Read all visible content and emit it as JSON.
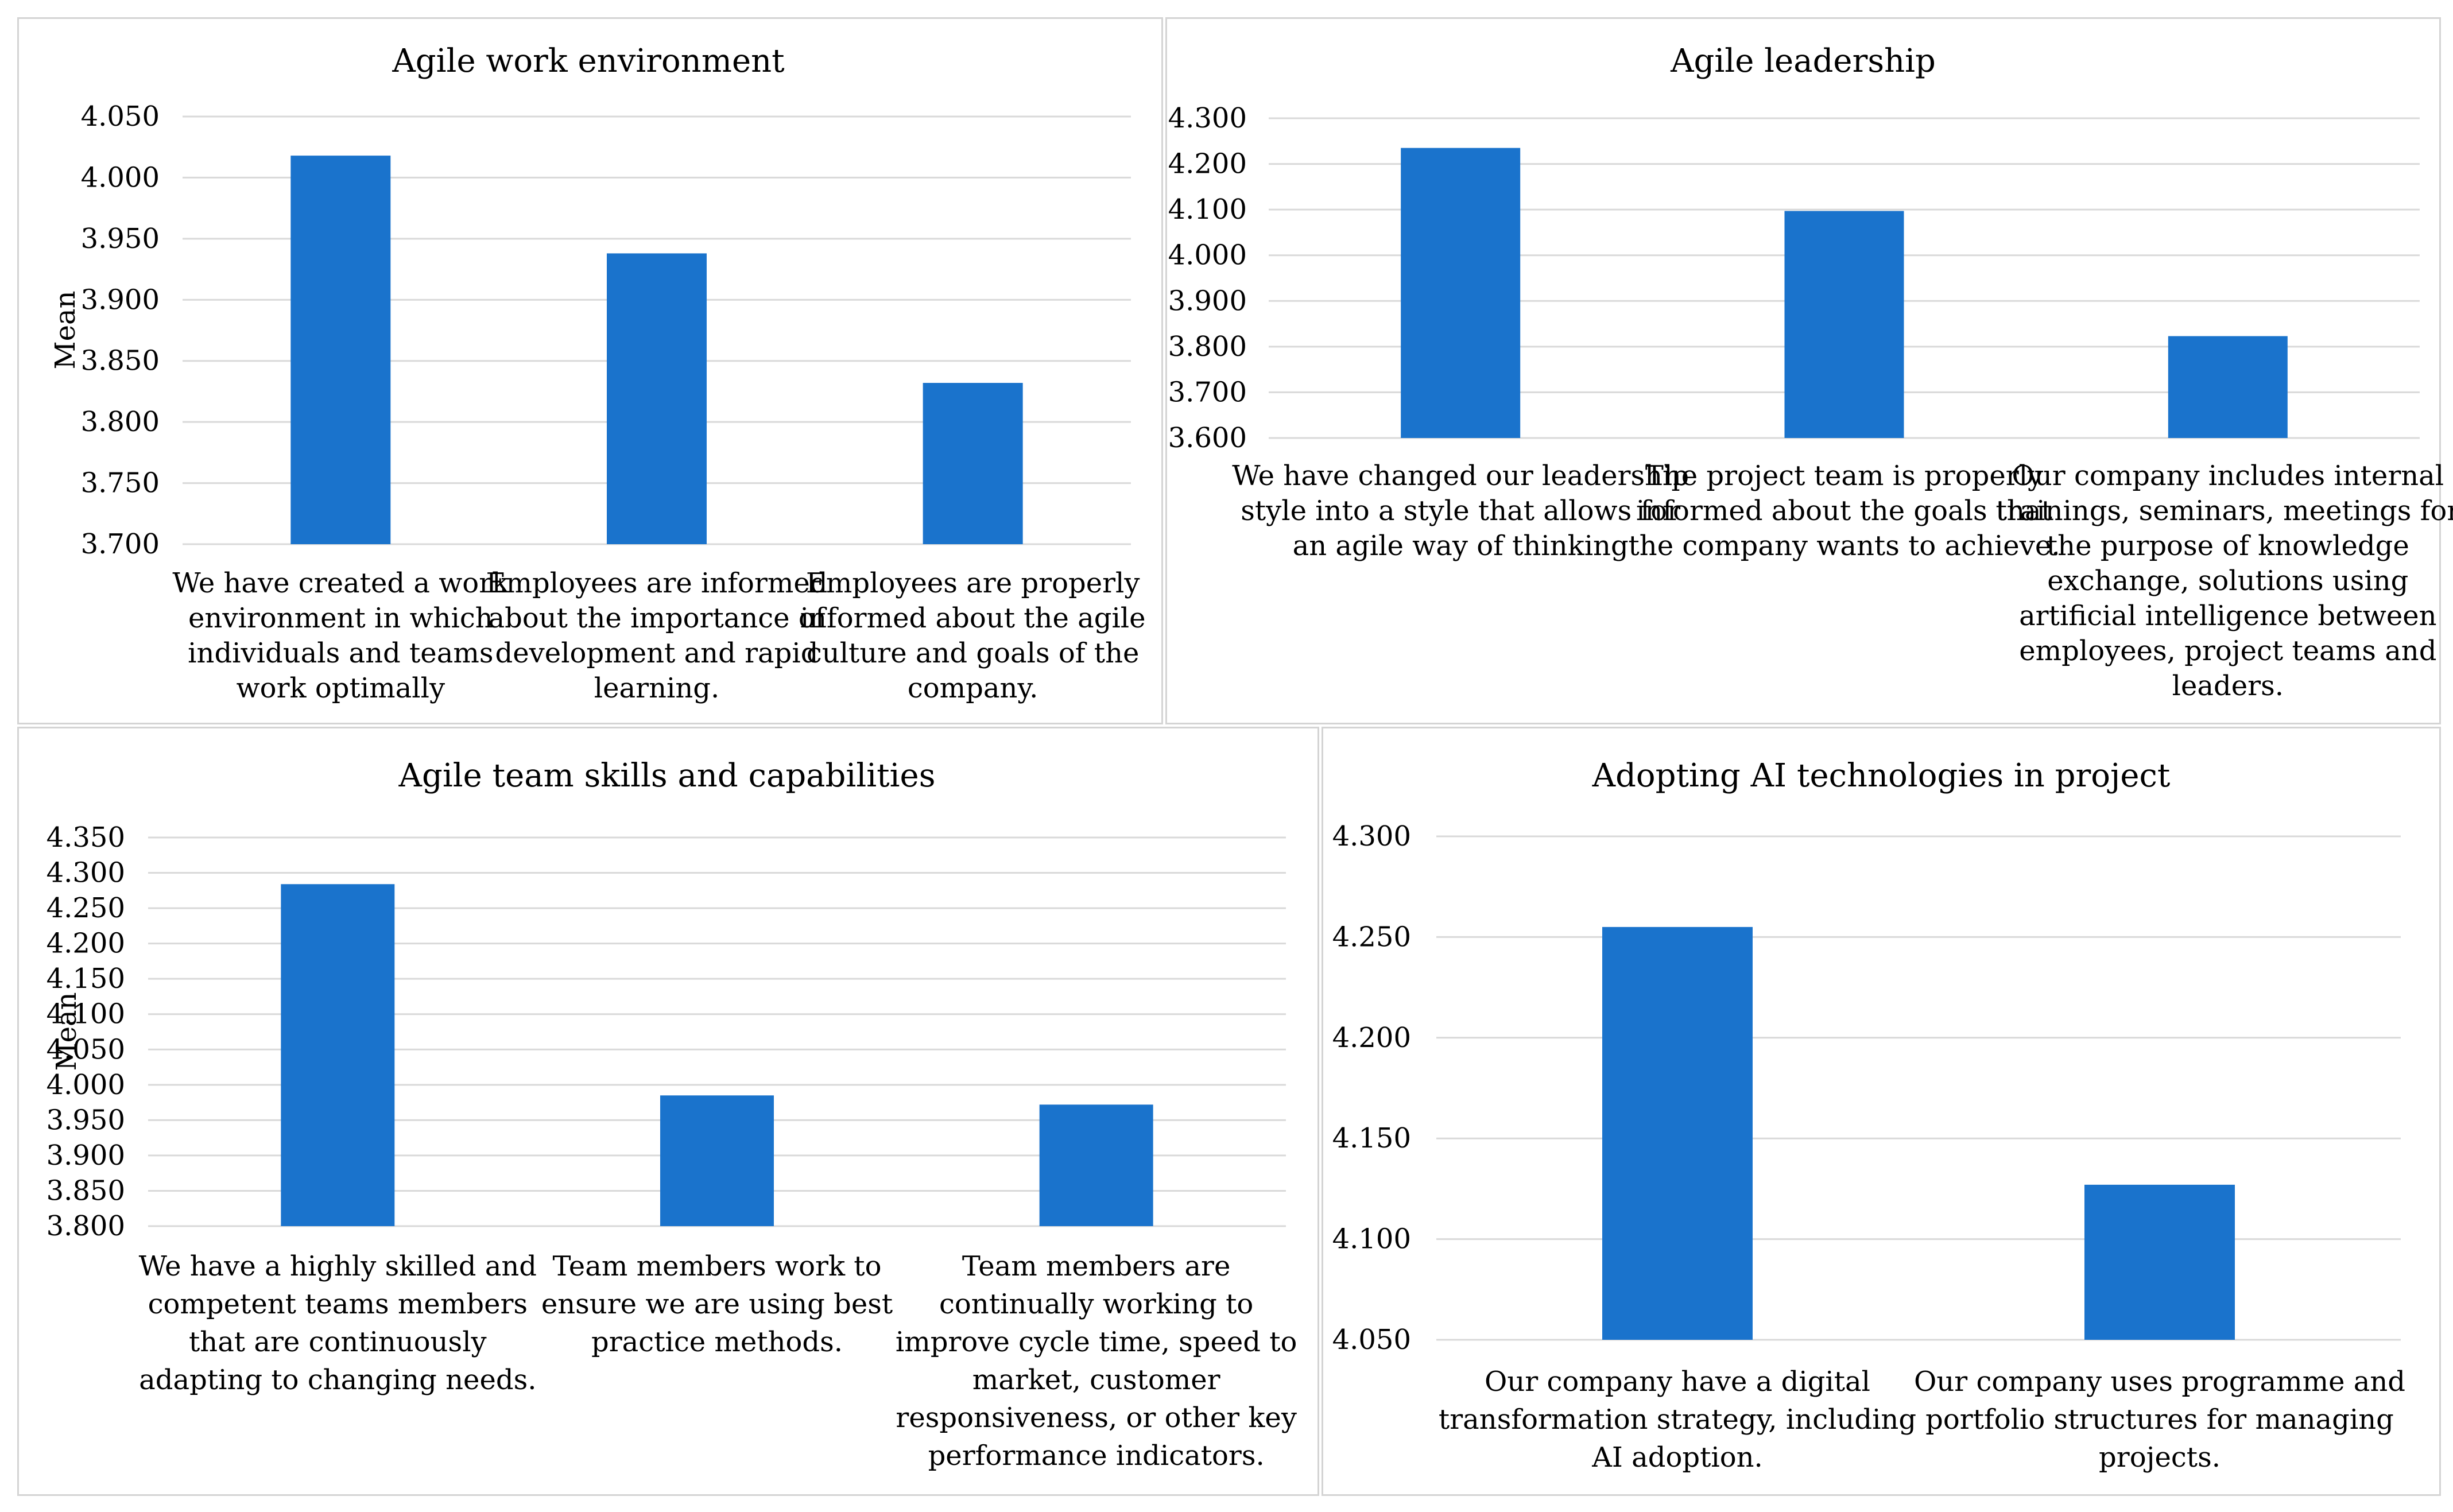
{
  "colors": {
    "bar": "#1a73cc",
    "grid": "#d9d9d9",
    "border": "#d4d4d4",
    "text": "#000000"
  },
  "chart_data": [
    {
      "type": "bar",
      "title": "Agile work environment",
      "ylabel": "Mean",
      "xlabel": "",
      "ylim": [
        3.7,
        4.05
      ],
      "yticks": [
        "3.700",
        "3.750",
        "3.800",
        "3.850",
        "3.900",
        "3.950",
        "4.000",
        "4.050"
      ],
      "categories": [
        [
          "We have created a work",
          "environment in which",
          "individuals and teams",
          "work optimally"
        ],
        [
          "Employees are informed",
          "about the importance of",
          "development and rapid",
          "learning."
        ],
        [
          "Employees are properly",
          "informed about the agile",
          "culture and goals of the",
          "company."
        ]
      ],
      "values": [
        4.018,
        3.938,
        3.832
      ]
    },
    {
      "type": "bar",
      "title": "Agile leadership",
      "ylabel": "",
      "xlabel": "",
      "ylim": [
        3.6,
        4.3
      ],
      "yticks": [
        "3.600",
        "3.700",
        "3.800",
        "3.900",
        "4.000",
        "4.100",
        "4.200",
        "4.300"
      ],
      "categories": [
        [
          "We have changed our leadership",
          "style into a style that allows for",
          "an agile way of thinking"
        ],
        [
          "The project team is properly",
          "informed about the goals that",
          "the company wants to achieve."
        ],
        [
          "Our company includes internal",
          "trainings, seminars, meetings for",
          "the purpose of knowledge",
          "exchange, solutions using",
          "artificial intelligence between",
          "employees, project teams and",
          "leaders."
        ]
      ],
      "values": [
        4.235,
        4.097,
        3.823
      ]
    },
    {
      "type": "bar",
      "title": "Agile team skills and capabilities",
      "ylabel": "Mean",
      "xlabel": "",
      "ylim": [
        3.8,
        4.35
      ],
      "yticks": [
        "3.800",
        "3.850",
        "3.900",
        "3.950",
        "4.000",
        "4.050",
        "4.100",
        "4.150",
        "4.200",
        "4.250",
        "4.300",
        "4.350"
      ],
      "categories": [
        [
          "We have a highly skilled and",
          "competent teams members",
          "that are continuously",
          "adapting to changing needs."
        ],
        [
          "Team members work to",
          "ensure we are using best",
          "practice methods."
        ],
        [
          "Team members are",
          "continually working to",
          "improve cycle time, speed to",
          "market, customer",
          "responsiveness, or other key",
          "performance indicators."
        ]
      ],
      "values": [
        4.284,
        3.985,
        3.972
      ]
    },
    {
      "type": "bar",
      "title": "Adopting AI technologies in project",
      "ylabel": "",
      "xlabel": "",
      "ylim": [
        4.05,
        4.3
      ],
      "yticks": [
        "4.050",
        "4.100",
        "4.150",
        "4.200",
        "4.250",
        "4.300"
      ],
      "categories": [
        [
          "Our company have a digital",
          "transformation strategy, including",
          "AI adoption."
        ],
        [
          "Our company uses programme and",
          "portfolio structures for managing",
          "projects."
        ]
      ],
      "values": [
        4.255,
        4.127
      ]
    }
  ]
}
